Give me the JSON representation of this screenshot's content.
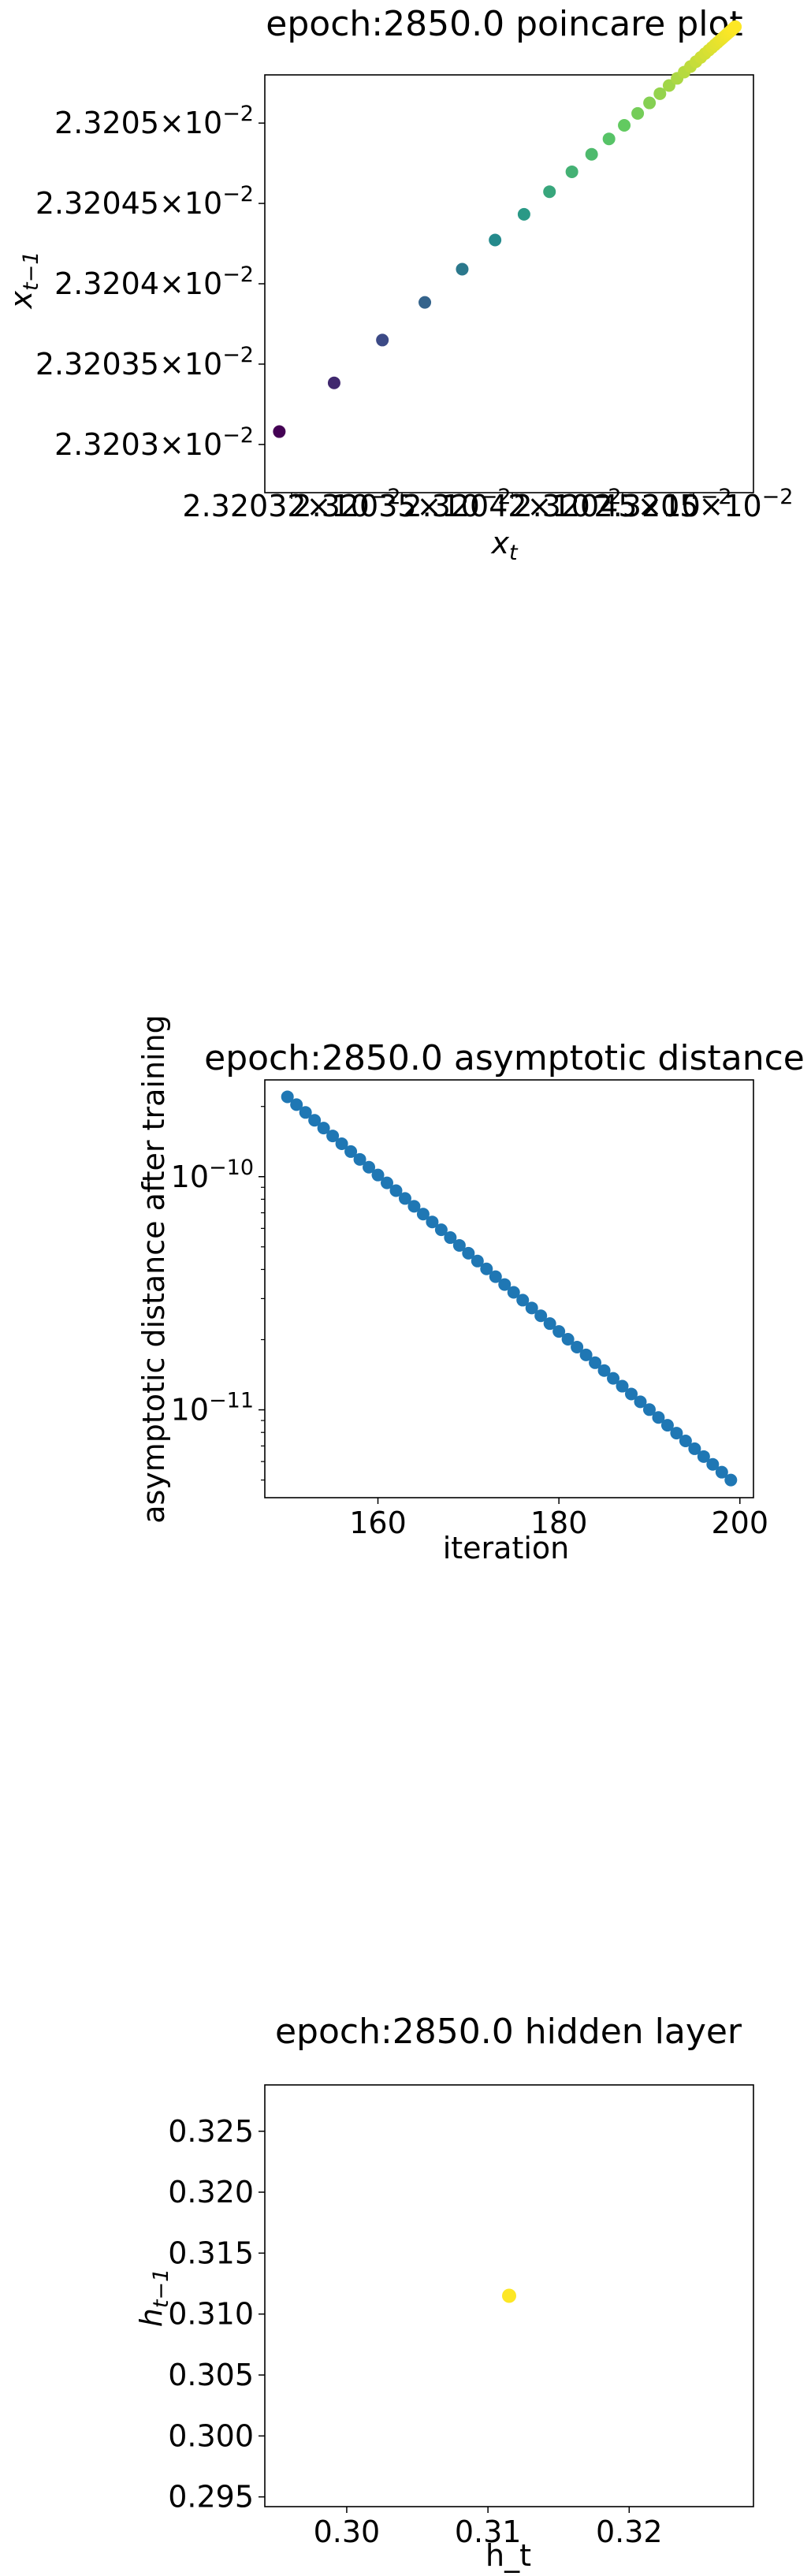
{
  "chart_data": [
    {
      "type": "scatter",
      "title": "epoch:2850.0 poincare plot",
      "xlabel": "x_t",
      "ylabel": "x_{t-1}",
      "x_ticks": [
        {
          "value": 0.0232032,
          "mantissa": "2.32032",
          "exp": "−2"
        },
        {
          "value": 0.0232035,
          "mantissa": "2.32035",
          "exp": "−2"
        },
        {
          "value": 0.0232042,
          "mantissa": "2.32042",
          "exp": "−2"
        },
        {
          "value": 0.02320452,
          "mantissa": "2.32045",
          "exp": "−2"
        },
        {
          "value": 0.0232048,
          "mantissa": "2.3205",
          "exp": "−2"
        }
      ],
      "y_ticks": [
        {
          "value": 0.023203,
          "mantissa": "2.3203",
          "exp": "−2"
        },
        {
          "value": 0.0232035,
          "mantissa": "2.32035",
          "exp": "−2"
        },
        {
          "value": 0.023204,
          "mantissa": "2.3204",
          "exp": "−2"
        },
        {
          "value": 0.0232045,
          "mantissa": "2.32045",
          "exp": "−2"
        },
        {
          "value": 0.023205,
          "mantissa": "2.3205",
          "exp": "−2"
        }
      ],
      "xlim": [
        0.023203,
        0.0232057
      ],
      "ylim": [
        0.0232027,
        0.0232053
      ],
      "x_scale": "log",
      "y_scale": "log",
      "colormap": "viridis",
      "colors": [
        "#440154",
        "#3b528b",
        "#21918c",
        "#5ec962",
        "#fde725"
      ],
      "n_points": 50,
      "x_start": 0.02320308,
      "x_end": 0.0232056,
      "geometric_ratio": 0.88,
      "note_points": "Points lie on the diagonal x_{t-1} = x_t, converging toward the upper-right end"
    },
    {
      "type": "scatter",
      "title": "epoch:2850.0 asymptotic distance",
      "xlabel": "iteration",
      "ylabel": "asymptotic distance after training",
      "x": [
        150,
        199
      ],
      "y_start": 2.2e-10,
      "y_end": 5e-12,
      "n_points": 50,
      "xlim": [
        147.5,
        201.5
      ],
      "ylim": [
        4.2e-12,
        2.6e-10
      ],
      "y_scale": "log",
      "x_ticks": [
        160,
        180,
        200
      ],
      "y_ticks": [
        {
          "value": 1e-10,
          "mantissa": "10",
          "exp": "−10"
        },
        {
          "value": 1e-11,
          "mantissa": "10",
          "exp": "−11"
        }
      ],
      "marker_color": "#1f77b4"
    },
    {
      "type": "scatter",
      "title": "epoch:2850.0 hidden layer",
      "xlabel": "h_t",
      "ylabel": "h_{t-1}",
      "x": [
        0.3115
      ],
      "y": [
        0.3115
      ],
      "xlim": [
        0.2942,
        0.3288
      ],
      "ylim": [
        0.2942,
        0.3288
      ],
      "x_ticks": [
        "0.30",
        "0.31",
        "0.32"
      ],
      "y_ticks": [
        "0.295",
        "0.300",
        "0.305",
        "0.310",
        "0.315",
        "0.320",
        "0.325"
      ],
      "marker_color": "#fde725"
    }
  ]
}
